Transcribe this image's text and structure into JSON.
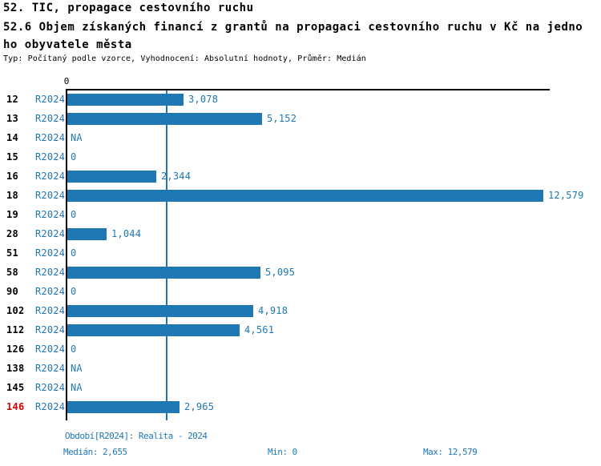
{
  "header": {
    "title_line1": "52. TIC, propagace cestovního ruchu",
    "title_line2": "52.6 Objem získaných financí z grantů na propagaci cestovního ruchu v Kč na jedno",
    "title_line3": "ho obyvatele města",
    "meta_line": "Typ: Počítaný podle vzorce, Vyhodnocení: Absolutní hodnoty, Průměr: Medián"
  },
  "chart_data": {
    "type": "bar",
    "orientation": "horizontal",
    "title": "52.6 Objem získaných financí z grantů na propagaci cestovního ruchu v Kč na jednoho obyvatele města",
    "categories": [
      "12",
      "13",
      "14",
      "15",
      "16",
      "18",
      "19",
      "28",
      "51",
      "58",
      "90",
      "102",
      "112",
      "126",
      "138",
      "145",
      "146"
    ],
    "period_label": "R2024",
    "values": [
      3078,
      5152,
      null,
      0,
      2344,
      12579,
      0,
      1044,
      0,
      5095,
      0,
      4918,
      4561,
      0,
      null,
      null,
      2965
    ],
    "value_labels": [
      "3,078",
      "5,152",
      "NA",
      "0",
      "2,344",
      "12,579",
      "0",
      "1,044",
      "0",
      "5,095",
      "0",
      "4,918",
      "4,561",
      "0",
      "NA",
      "NA",
      "2,965"
    ],
    "xlim": [
      0,
      12579
    ],
    "zero_tick_label": "0",
    "grid": false,
    "legend": "none",
    "median_line_value": 2655,
    "median": 2655,
    "min": 0,
    "max": 12579,
    "highlighted_category": "146",
    "bar_color": "#1f77b4",
    "highlight_color": "#dd0000"
  },
  "footer": {
    "period": "Období[R2024]: Realita - 2024",
    "median": "Medián: 2,655",
    "min": "Min: 0",
    "max": "Max: 12,579"
  }
}
